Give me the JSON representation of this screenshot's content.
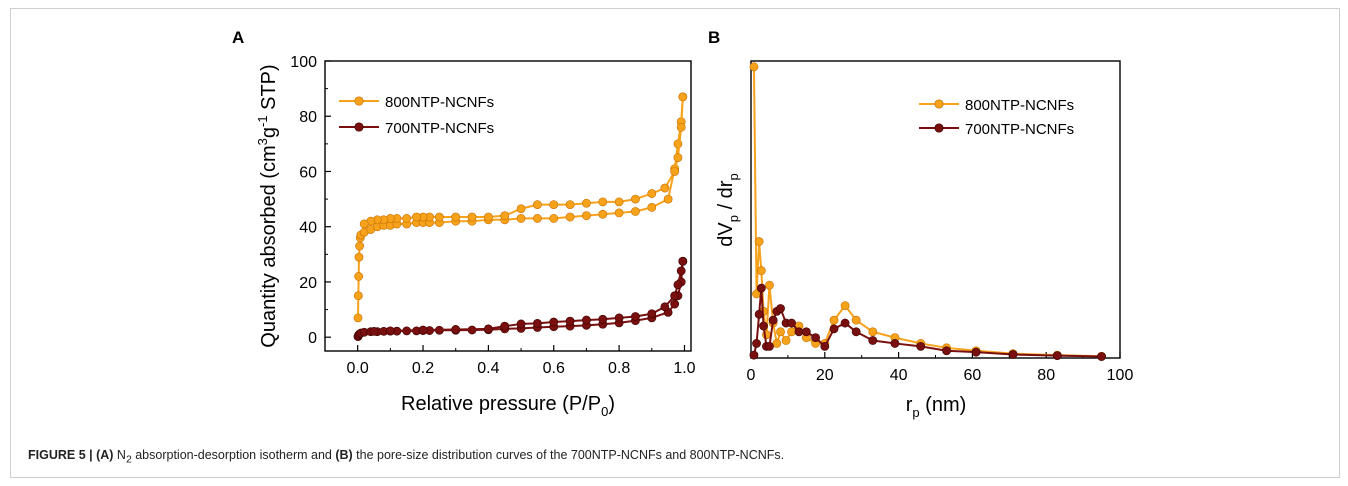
{
  "caption": {
    "figure_label": "FIGURE 5 | ",
    "a_ref": "(A)",
    "part1_pre": " N",
    "part1_sub": "2",
    "part1_post": " absorption-desorption isotherm and ",
    "b_ref": "(B)",
    "part2": " the pore-size distribution curves of the 700NTP-NCNFs and 800NTP-NCNFs."
  },
  "colors": {
    "series_800": "#f7a21b",
    "series_700": "#7a0f0f",
    "axis": "#000000"
  },
  "chart_data": [
    {
      "type": "line",
      "panel_label": "A",
      "xlabel": "Relative pressure (P/P0)",
      "xlabel_main": "Relative pressure (P/P",
      "xlabel_sub": "0",
      "xlabel_close": ")",
      "ylabel": "Quantity absorbed (cm3g-1 STP)",
      "ylabel_main": "Quantity absorbed  (cm",
      "ylabel_sup1": "3",
      "ylabel_mid": "g",
      "ylabel_sup2": "-1",
      "ylabel_end": " STP)",
      "xlim": [
        -0.1,
        1.02
      ],
      "ylim": [
        -5,
        100
      ],
      "xticks": [
        "0.0",
        "0.2",
        "0.4",
        "0.6",
        "0.8",
        "1.0"
      ],
      "yticks": [
        "0",
        "20",
        "40",
        "60",
        "80",
        "100"
      ],
      "legend_position": "top-left",
      "series": [
        {
          "name": "800NTP-NCNFs",
          "branch": "adsorption",
          "x": [
            0.001,
            0.002,
            0.003,
            0.004,
            0.006,
            0.008,
            0.01,
            0.02,
            0.04,
            0.06,
            0.08,
            0.1,
            0.12,
            0.15,
            0.18,
            0.2,
            0.22,
            0.25,
            0.3,
            0.35,
            0.4,
            0.45,
            0.5,
            0.55,
            0.6,
            0.65,
            0.7,
            0.75,
            0.8,
            0.85,
            0.9,
            0.95,
            0.97,
            0.98,
            0.99,
            0.995
          ],
          "values": [
            7,
            15,
            22,
            29,
            33,
            36,
            37,
            38,
            39,
            40,
            40.5,
            40.5,
            41,
            41,
            41.5,
            41.5,
            41.5,
            41.5,
            42,
            42,
            42.5,
            42.5,
            43,
            43,
            43,
            43.5,
            44,
            44.5,
            45,
            45.5,
            47,
            50,
            61,
            70,
            78,
            87
          ]
        },
        {
          "name": "800NTP-NCNFs",
          "branch": "desorption",
          "x": [
            0.995,
            0.99,
            0.98,
            0.97,
            0.94,
            0.9,
            0.85,
            0.8,
            0.75,
            0.7,
            0.65,
            0.6,
            0.55,
            0.5,
            0.45,
            0.4,
            0.35,
            0.3,
            0.25,
            0.22,
            0.2,
            0.18,
            0.15,
            0.12,
            0.1,
            0.08,
            0.06,
            0.04,
            0.02
          ],
          "values": [
            87,
            76,
            65,
            60,
            54,
            52,
            50,
            49,
            49,
            48.5,
            48,
            48,
            48,
            46.5,
            44,
            43.5,
            43.5,
            43.5,
            43.5,
            43.5,
            43.5,
            43.5,
            43,
            43,
            43,
            42.5,
            42.5,
            42,
            41
          ]
        },
        {
          "name": "700NTP-NCNFs",
          "branch": "adsorption",
          "x": [
            0.001,
            0.003,
            0.006,
            0.01,
            0.02,
            0.04,
            0.06,
            0.08,
            0.1,
            0.12,
            0.15,
            0.18,
            0.2,
            0.22,
            0.25,
            0.3,
            0.35,
            0.4,
            0.45,
            0.5,
            0.55,
            0.6,
            0.65,
            0.7,
            0.75,
            0.8,
            0.85,
            0.9,
            0.95,
            0.97,
            0.98,
            0.99,
            0.995
          ],
          "values": [
            0.2,
            0.8,
            1.2,
            1.5,
            1.8,
            2,
            2,
            2.1,
            2.2,
            2.2,
            2.3,
            2.3,
            2.4,
            2.4,
            2.5,
            2.5,
            2.6,
            2.7,
            3,
            3.2,
            3.5,
            3.8,
            4,
            4.3,
            4.7,
            5.2,
            6,
            7,
            9,
            12,
            15,
            20,
            27.5
          ]
        },
        {
          "name": "700NTP-NCNFs",
          "branch": "desorption",
          "x": [
            0.995,
            0.99,
            0.98,
            0.97,
            0.94,
            0.9,
            0.85,
            0.8,
            0.75,
            0.7,
            0.65,
            0.6,
            0.55,
            0.5,
            0.45,
            0.4,
            0.3,
            0.2,
            0.1,
            0.05
          ],
          "values": [
            27.5,
            24,
            19,
            15,
            11,
            8.5,
            7.5,
            7,
            6.5,
            6.2,
            5.8,
            5.5,
            5,
            4.8,
            4,
            3,
            2.8,
            2.6,
            2.3,
            2.1
          ]
        }
      ]
    },
    {
      "type": "line",
      "panel_label": "B",
      "xlabel": "rp (nm)",
      "xlabel_main": "r",
      "xlabel_sub": "p",
      "xlabel_end": " (nm)",
      "ylabel": "dVp / drp",
      "ylabel_p1": "dV",
      "ylabel_s1": "p",
      "ylabel_p2": " / dr",
      "ylabel_s2": "p",
      "xlim": [
        0,
        100
      ],
      "ylim": [
        0,
        1.02
      ],
      "xticks": [
        "0",
        "20",
        "40",
        "60",
        "80",
        "100"
      ],
      "yticks_shown": false,
      "legend_position": "top-right",
      "series": [
        {
          "name": "800NTP-NCNFs",
          "x": [
            0.8,
            1.5,
            2.2,
            2.8,
            3.4,
            4.2,
            5,
            6,
            7,
            8,
            9.5,
            11,
            13,
            15,
            17.5,
            20,
            22.5,
            25.5,
            28.5,
            33,
            39,
            46,
            53,
            61,
            71,
            83,
            95
          ],
          "values": [
            1.0,
            0.22,
            0.4,
            0.3,
            0.16,
            0.08,
            0.25,
            0.12,
            0.05,
            0.09,
            0.06,
            0.09,
            0.11,
            0.07,
            0.05,
            0.05,
            0.13,
            0.18,
            0.13,
            0.09,
            0.07,
            0.05,
            0.035,
            0.025,
            0.015,
            0.01,
            0.006
          ]
        },
        {
          "name": "700NTP-NCNFs",
          "x": [
            0.8,
            1.5,
            2.2,
            2.8,
            3.4,
            4.2,
            5,
            6,
            7,
            8,
            9.5,
            11,
            13,
            15,
            17.5,
            20,
            22.5,
            25.5,
            28.5,
            33,
            39,
            46,
            53,
            61,
            71,
            83,
            95
          ],
          "values": [
            0.01,
            0.05,
            0.15,
            0.24,
            0.11,
            0.04,
            0.04,
            0.13,
            0.16,
            0.17,
            0.12,
            0.12,
            0.09,
            0.09,
            0.07,
            0.04,
            0.1,
            0.12,
            0.09,
            0.06,
            0.05,
            0.04,
            0.025,
            0.02,
            0.012,
            0.008,
            0.005
          ]
        }
      ]
    }
  ]
}
